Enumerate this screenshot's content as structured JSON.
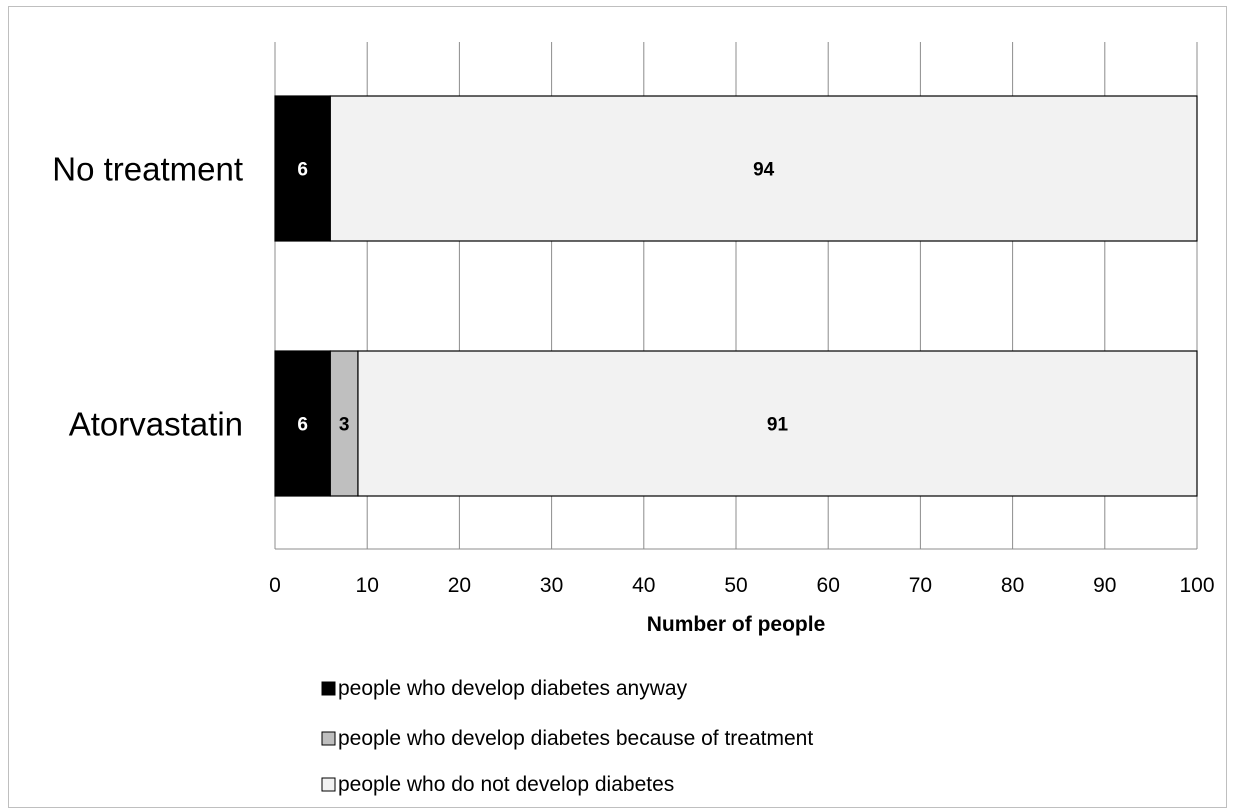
{
  "chart_data": {
    "type": "bar",
    "orientation": "horizontal",
    "stacked": true,
    "categories": [
      "No treatment",
      "Atorvastatin"
    ],
    "series": [
      {
        "name": "people who develop diabetes anyway",
        "values": [
          6,
          6
        ],
        "color": "#000000",
        "label_color": "#ffffff"
      },
      {
        "name": "people who develop diabetes because of treatment",
        "values": [
          0,
          3
        ],
        "color": "#bfbfbf",
        "label_color": "#000000"
      },
      {
        "name": "people who do not develop diabetes",
        "values": [
          94,
          91
        ],
        "color": "#f2f2f2",
        "label_color": "#000000"
      }
    ],
    "xlabel": "Number of people",
    "ylabel": "",
    "title": "",
    "xlim": [
      0,
      100
    ],
    "xticks": [
      0,
      10,
      20,
      30,
      40,
      50,
      60,
      70,
      80,
      90,
      100
    ],
    "grid": "vertical",
    "legend_position": "bottom"
  }
}
